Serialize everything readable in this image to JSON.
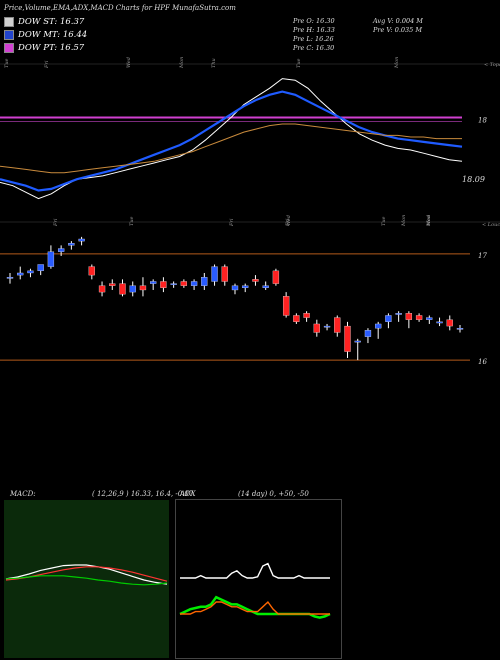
{
  "header": {
    "title": "Price,Volume,EMA,ADX,MACD Charts for HPF MunafaSutra.com"
  },
  "legend": [
    {
      "label": "DOW ST: 16.37",
      "color": "#d1d1d1"
    },
    {
      "label": "DOW MT: 16.44",
      "color": "#2244cc"
    },
    {
      "label": "DOW PT: 16.57",
      "color": "#d040d0"
    }
  ],
  "stats": {
    "open": "Pre O: 16.30",
    "high": "Pre H: 16.33",
    "low": "Pre L: 16.26",
    "close": "Pre C: 16.30",
    "avg_volume": "Avg V: 0.004 M",
    "prev_volume": "Pre V: 0.035 M"
  },
  "chart_data": [
    {
      "type": "line",
      "name": "ema_panel",
      "ylabels": [
        "18",
        "18.09"
      ],
      "xticklabels": [
        "Tue",
        "Fri",
        "Wed",
        "Mon",
        "Thu",
        "Tue",
        "Mon"
      ],
      "corner_label": "< Topa",
      "magenta_level": 18.12,
      "series": [
        {
          "color": "#ffffff",
          "values": [
            17.72,
            17.7,
            17.66,
            17.62,
            17.65,
            17.7,
            17.74,
            17.75,
            17.76,
            17.78,
            17.8,
            17.82,
            17.84,
            17.86,
            17.88,
            17.92,
            17.98,
            18.05,
            18.12,
            18.2,
            18.25,
            18.3,
            18.36,
            18.35,
            18.3,
            18.22,
            18.15,
            18.08,
            18.02,
            17.98,
            17.95,
            17.93,
            17.92,
            17.9,
            17.88,
            17.86,
            17.85
          ]
        },
        {
          "color": "#1f5bff",
          "values": [
            17.74,
            17.72,
            17.7,
            17.67,
            17.68,
            17.71,
            17.74,
            17.76,
            17.78,
            17.8,
            17.83,
            17.86,
            17.89,
            17.92,
            17.95,
            17.99,
            18.04,
            18.09,
            18.14,
            18.19,
            18.23,
            18.26,
            18.28,
            18.26,
            18.22,
            18.18,
            18.14,
            18.1,
            18.06,
            18.03,
            18.01,
            17.99,
            17.98,
            17.97,
            17.96,
            17.95,
            17.94
          ]
        },
        {
          "color": "#c88a3c",
          "values": [
            17.82,
            17.81,
            17.8,
            17.79,
            17.78,
            17.78,
            17.79,
            17.8,
            17.81,
            17.82,
            17.83,
            17.84,
            17.85,
            17.87,
            17.89,
            17.91,
            17.94,
            17.97,
            18.0,
            18.03,
            18.05,
            18.07,
            18.08,
            18.08,
            18.07,
            18.06,
            18.05,
            18.04,
            18.03,
            18.02,
            18.01,
            18.01,
            18.0,
            18.0,
            17.99,
            17.99,
            17.99
          ]
        }
      ]
    },
    {
      "type": "bar",
      "name": "price_panel",
      "ylabels": [
        "17",
        "16"
      ],
      "xticklabels": [
        "Fri",
        "Tue",
        "Fri",
        "Wed",
        "Fri",
        "Tue",
        "Mon",
        "Wed",
        "Mon"
      ],
      "corner_label": "< Loucin",
      "levels": [
        17.0,
        16.0
      ],
      "candles": [
        {
          "o": 16.78,
          "h": 16.82,
          "l": 16.72,
          "c": 16.78,
          "up": true
        },
        {
          "o": 16.8,
          "h": 16.88,
          "l": 16.76,
          "c": 16.82,
          "up": true
        },
        {
          "o": 16.82,
          "h": 16.86,
          "l": 16.78,
          "c": 16.84,
          "up": true
        },
        {
          "o": 16.84,
          "h": 16.9,
          "l": 16.8,
          "c": 16.9,
          "up": true
        },
        {
          "o": 16.88,
          "h": 17.08,
          "l": 16.86,
          "c": 17.02,
          "up": true
        },
        {
          "o": 17.02,
          "h": 17.08,
          "l": 16.98,
          "c": 17.05,
          "up": true
        },
        {
          "o": 17.08,
          "h": 17.12,
          "l": 17.04,
          "c": 17.1,
          "up": true
        },
        {
          "o": 17.12,
          "h": 17.16,
          "l": 17.08,
          "c": 17.14,
          "up": true
        },
        {
          "o": 16.88,
          "h": 16.9,
          "l": 16.76,
          "c": 16.8,
          "up": false
        },
        {
          "o": 16.7,
          "h": 16.74,
          "l": 16.6,
          "c": 16.64,
          "up": false
        },
        {
          "o": 16.72,
          "h": 16.76,
          "l": 16.66,
          "c": 16.7,
          "up": false
        },
        {
          "o": 16.72,
          "h": 16.76,
          "l": 16.6,
          "c": 16.62,
          "up": false
        },
        {
          "o": 16.64,
          "h": 16.74,
          "l": 16.6,
          "c": 16.7,
          "up": true
        },
        {
          "o": 16.7,
          "h": 16.78,
          "l": 16.6,
          "c": 16.66,
          "up": false
        },
        {
          "o": 16.72,
          "h": 16.76,
          "l": 16.66,
          "c": 16.74,
          "up": true
        },
        {
          "o": 16.74,
          "h": 16.78,
          "l": 16.64,
          "c": 16.68,
          "up": false
        },
        {
          "o": 16.72,
          "h": 16.74,
          "l": 16.68,
          "c": 16.72,
          "up": true
        },
        {
          "o": 16.74,
          "h": 16.76,
          "l": 16.68,
          "c": 16.7,
          "up": false
        },
        {
          "o": 16.7,
          "h": 16.76,
          "l": 16.66,
          "c": 16.74,
          "up": true
        },
        {
          "o": 16.7,
          "h": 16.82,
          "l": 16.66,
          "c": 16.78,
          "up": true
        },
        {
          "o": 16.74,
          "h": 16.9,
          "l": 16.7,
          "c": 16.88,
          "up": true
        },
        {
          "o": 16.88,
          "h": 16.9,
          "l": 16.7,
          "c": 16.74,
          "up": false
        },
        {
          "o": 16.66,
          "h": 16.72,
          "l": 16.62,
          "c": 16.7,
          "up": true
        },
        {
          "o": 16.68,
          "h": 16.72,
          "l": 16.64,
          "c": 16.7,
          "up": true
        },
        {
          "o": 16.76,
          "h": 16.8,
          "l": 16.7,
          "c": 16.74,
          "up": false
        },
        {
          "o": 16.68,
          "h": 16.74,
          "l": 16.66,
          "c": 16.7,
          "up": true
        },
        {
          "o": 16.84,
          "h": 16.86,
          "l": 16.7,
          "c": 16.72,
          "up": false
        },
        {
          "o": 16.6,
          "h": 16.64,
          "l": 16.4,
          "c": 16.42,
          "up": false
        },
        {
          "o": 16.42,
          "h": 16.44,
          "l": 16.34,
          "c": 16.36,
          "up": false
        },
        {
          "o": 16.44,
          "h": 16.46,
          "l": 16.36,
          "c": 16.4,
          "up": false
        },
        {
          "o": 16.34,
          "h": 16.38,
          "l": 16.22,
          "c": 16.26,
          "up": false
        },
        {
          "o": 16.32,
          "h": 16.34,
          "l": 16.28,
          "c": 16.32,
          "up": true
        },
        {
          "o": 16.4,
          "h": 16.42,
          "l": 16.22,
          "c": 16.26,
          "up": false
        },
        {
          "o": 16.08,
          "h": 16.36,
          "l": 16.02,
          "c": 16.32,
          "up": false
        },
        {
          "o": 16.18,
          "h": 16.2,
          "l": 16.0,
          "c": 16.18,
          "up": true
        },
        {
          "o": 16.22,
          "h": 16.3,
          "l": 16.16,
          "c": 16.28,
          "up": true
        },
        {
          "o": 16.3,
          "h": 16.36,
          "l": 16.2,
          "c": 16.34,
          "up": true
        },
        {
          "o": 16.36,
          "h": 16.44,
          "l": 16.3,
          "c": 16.42,
          "up": true
        },
        {
          "o": 16.44,
          "h": 16.46,
          "l": 16.36,
          "c": 16.44,
          "up": true
        },
        {
          "o": 16.44,
          "h": 16.46,
          "l": 16.3,
          "c": 16.38,
          "up": false
        },
        {
          "o": 16.42,
          "h": 16.44,
          "l": 16.36,
          "c": 16.38,
          "up": false
        },
        {
          "o": 16.4,
          "h": 16.42,
          "l": 16.34,
          "c": 16.38,
          "up": true
        },
        {
          "o": 16.36,
          "h": 16.4,
          "l": 16.32,
          "c": 16.36,
          "up": true
        },
        {
          "o": 16.38,
          "h": 16.42,
          "l": 16.28,
          "c": 16.32,
          "up": false
        },
        {
          "o": 16.3,
          "h": 16.33,
          "l": 16.26,
          "c": 16.3,
          "up": true
        }
      ]
    },
    {
      "type": "line",
      "name": "macd_panel",
      "label": "MACD:",
      "params": "( 12,26,9 ) 16.33, 16.4, -0.07",
      "series": [
        {
          "color": "#ffffff",
          "values": [
            0.02,
            0.05,
            0.1,
            0.16,
            0.2,
            0.24,
            0.25,
            0.25,
            0.22,
            0.18,
            0.12,
            0.06,
            0.0,
            -0.04,
            -0.07
          ]
        },
        {
          "color": "#ff3333",
          "values": [
            0.0,
            0.02,
            0.05,
            0.09,
            0.13,
            0.17,
            0.2,
            0.22,
            0.22,
            0.2,
            0.17,
            0.13,
            0.08,
            0.03,
            -0.02
          ]
        },
        {
          "color": "#00cc00",
          "values": [
            0.02,
            0.03,
            0.05,
            0.07,
            0.07,
            0.07,
            0.05,
            0.03,
            0.0,
            -0.02,
            -0.05,
            -0.07,
            -0.08,
            -0.07,
            -0.05
          ]
        }
      ]
    },
    {
      "type": "line",
      "name": "adx_panel",
      "label": "ADX",
      "params": "(14 day) 0, +50, -50",
      "series": [
        {
          "color": "#ffffff",
          "values": [
            50,
            50,
            50,
            50,
            52,
            50,
            50,
            50,
            50,
            50,
            54,
            56,
            52,
            50,
            50,
            51,
            60,
            62,
            52,
            50,
            50,
            50,
            50,
            52,
            50,
            50,
            50,
            50,
            50,
            50
          ]
        },
        {
          "color": "#00ee00",
          "values": [
            20,
            22,
            24,
            25,
            26,
            26,
            28,
            34,
            32,
            30,
            28,
            28,
            26,
            24,
            22,
            20,
            20,
            20,
            20,
            20,
            20,
            20,
            20,
            20,
            20,
            20,
            18,
            17,
            18,
            20
          ]
        },
        {
          "color": "#ff6600",
          "values": [
            20,
            20,
            20,
            22,
            22,
            24,
            26,
            30,
            30,
            28,
            26,
            26,
            24,
            22,
            22,
            22,
            26,
            30,
            24,
            20,
            20,
            20,
            20,
            20,
            20,
            20,
            20,
            20,
            20,
            20
          ]
        }
      ]
    }
  ]
}
